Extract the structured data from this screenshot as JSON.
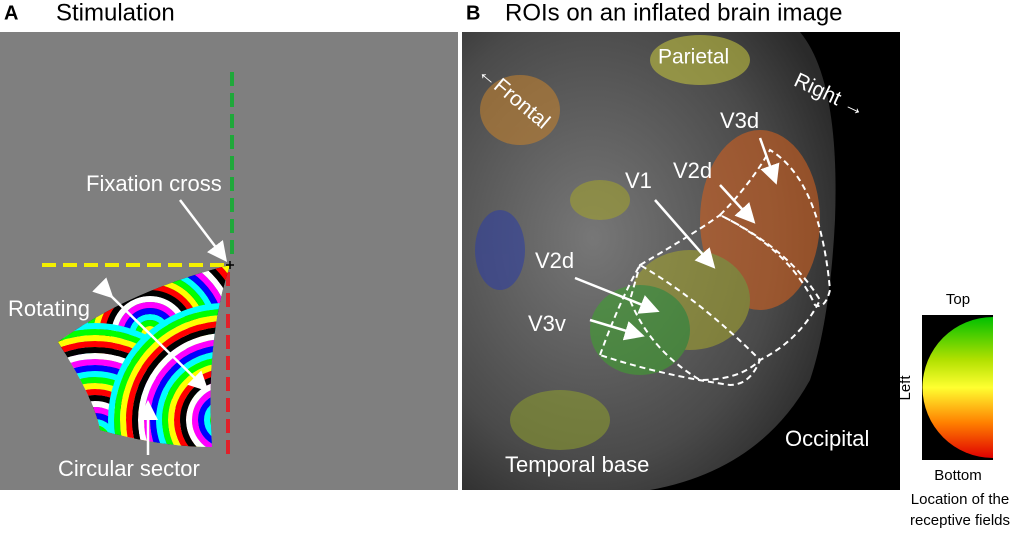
{
  "panel_a": {
    "letter": "A",
    "title": "Stimulation",
    "labels": [
      "Fixation cross",
      "Rotating",
      "Circular sector"
    ]
  },
  "panel_b": {
    "letter": "B",
    "title": "ROIs on an inflated brain image",
    "labels": [
      "Parietal",
      "Right →",
      "←Frontal",
      "V3d",
      "V2d",
      "V1",
      "V2d",
      "V3v",
      "Temporal base",
      "Occipital"
    ]
  },
  "legend": {
    "top": "Top",
    "left": "Left",
    "bottom": "Bottom",
    "caption": [
      "Location of the",
      "receptive fields"
    ]
  }
}
